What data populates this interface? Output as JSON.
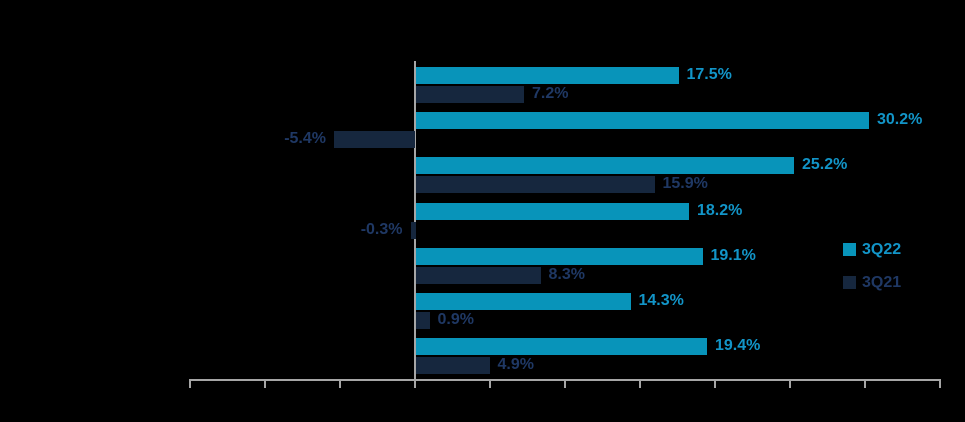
{
  "chart_data": {
    "type": "bar",
    "orientation": "horizontal",
    "title": "",
    "categories": [
      "",
      "",
      "",
      "",
      "",
      "",
      ""
    ],
    "series": [
      {
        "name": "3Q22",
        "color": "#0894BA",
        "label_color": "#1295C8",
        "values": [
          17.5,
          30.2,
          25.2,
          18.2,
          19.1,
          14.3,
          19.4
        ],
        "labels": [
          "17.5%",
          "30.2%",
          "25.2%",
          "18.2%",
          "19.1%",
          "14.3%",
          "19.4%"
        ]
      },
      {
        "name": "3Q21",
        "color": "#16273E",
        "label_color": "#1F3864",
        "values": [
          7.2,
          -5.4,
          15.9,
          -0.3,
          8.3,
          0.9,
          4.9
        ],
        "labels": [
          "7.2%",
          "-5.4%",
          "15.9%",
          "-0.3%",
          "8.3%",
          "0.9%",
          "4.9%"
        ]
      }
    ],
    "xlim": [
      -15,
      35
    ],
    "x_tick_step": 5,
    "x_tick_labels_visible": false,
    "grid": false,
    "legend": {
      "position": "right",
      "entries": [
        "3Q22",
        "3Q21"
      ]
    },
    "axis_color": "#A6A6A6",
    "background_color": "#000000"
  }
}
